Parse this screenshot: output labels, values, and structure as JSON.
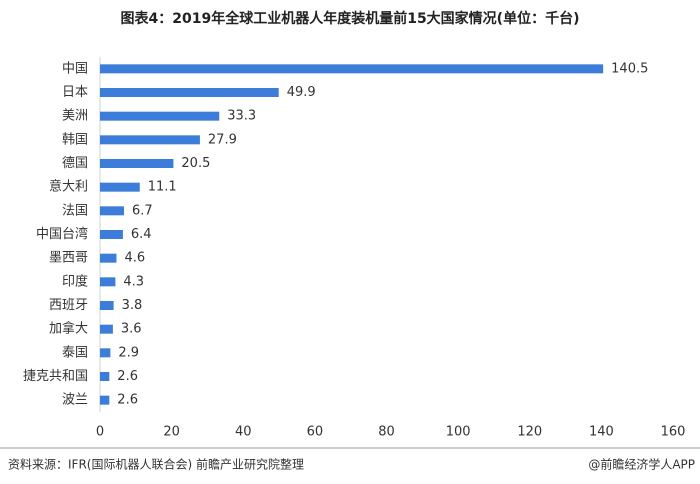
{
  "chart_data": {
    "type": "barh",
    "title": "图表4：2019年全球工业机器人年度装机量前15大国家情况(单位：千台)",
    "categories": [
      "中国",
      "日本",
      "美洲",
      "韩国",
      "德国",
      "意大利",
      "法国",
      "中国台湾",
      "墨西哥",
      "印度",
      "西班牙",
      "加拿大",
      "泰国",
      "捷克共和国",
      "波兰"
    ],
    "values": [
      140.5,
      49.9,
      33.3,
      27.9,
      20.5,
      11.1,
      6.7,
      6.4,
      4.6,
      4.3,
      3.8,
      3.6,
      2.9,
      2.6,
      2.6
    ],
    "color": "#3b7dd8",
    "xlim": [
      0,
      160
    ],
    "xticks": [
      0,
      20,
      40,
      60,
      80,
      100,
      120,
      140,
      160
    ],
    "source": "资料来源：IFR(国际机器人联合会) 前瞻产业研究院整理",
    "credit": "@前瞻经济学人APP"
  }
}
